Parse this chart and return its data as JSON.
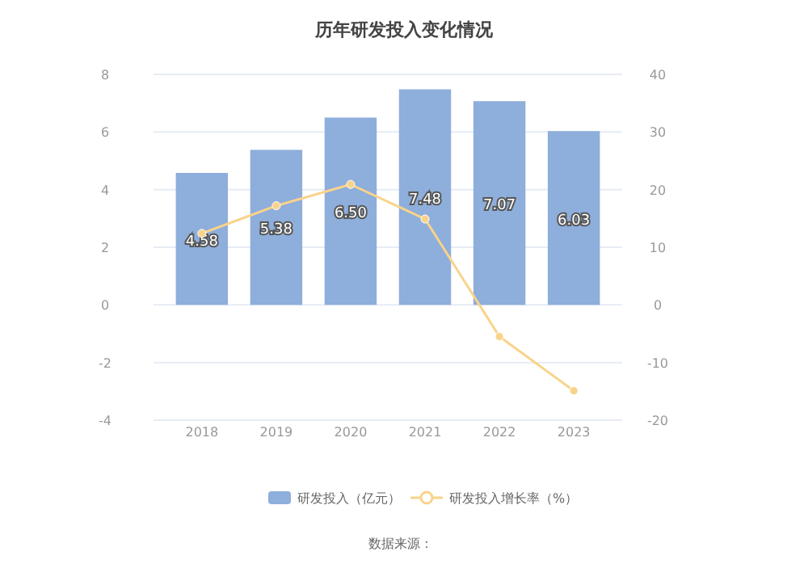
{
  "chart_data": {
    "type": "bar",
    "title": "历年研发投入变化情况",
    "categories": [
      "2018",
      "2019",
      "2020",
      "2021",
      "2022",
      "2023"
    ],
    "series": [
      {
        "name": "研发投入（亿元）",
        "color": "#8eaedb",
        "values": [
          4.58,
          5.38,
          6.5,
          7.48,
          7.07,
          6.03
        ],
        "value_labels": [
          "4.58",
          "5.38",
          "6.50",
          "7.48",
          "7.07",
          "6.03"
        ]
      },
      {
        "name": "研发投入增长率（%）",
        "type": "line",
        "axis": "y2",
        "color": "#f9d38a",
        "values": [
          12.4,
          17.2,
          20.9,
          14.9,
          -5.5,
          -14.9
        ]
      }
    ],
    "ylim": [
      -4,
      8
    ],
    "yticks": [
      -4,
      -2,
      0,
      2,
      4,
      6,
      8
    ],
    "y2lim": [
      -20,
      40
    ],
    "y2ticks": [
      -20,
      -10,
      0,
      10,
      20,
      30,
      40
    ],
    "grid": "y",
    "legend": "bottom",
    "marker": "circle",
    "annotations": [
      "数据来源："
    ]
  }
}
